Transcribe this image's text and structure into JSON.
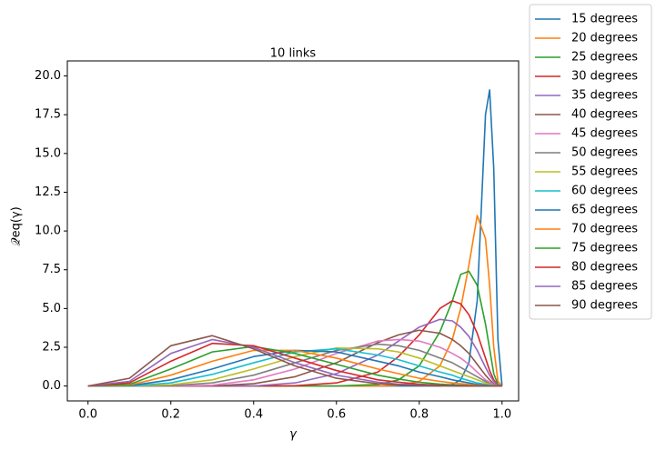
{
  "chart_data": {
    "type": "line",
    "title": "10 links",
    "x_label": "γ",
    "y_label": "𝒬eq(γ)",
    "x": [
      0,
      0.1,
      0.2,
      0.3,
      0.4,
      0.5,
      0.6,
      0.7,
      0.75,
      0.8,
      0.85,
      0.88,
      0.9,
      0.92,
      0.94,
      0.96,
      0.97,
      0.98,
      0.99,
      1.0
    ],
    "xlim": [
      -0.05,
      1.04
    ],
    "xticks": [
      {
        "value": 0,
        "label": "0.0"
      },
      0.2,
      0.4,
      0.6,
      0.8,
      {
        "value": 1,
        "label": "1.0"
      }
    ],
    "ylim": [
      -0.96,
      20.97
    ],
    "yticks": [
      {
        "value": 0,
        "label": "0.0"
      },
      2.5,
      {
        "value": 5,
        "label": "5.0"
      },
      7.5,
      {
        "value": 10,
        "label": "10.0"
      },
      12.5,
      {
        "value": 15,
        "label": "15.0"
      },
      17.5,
      {
        "value": 20,
        "label": "20.0"
      }
    ],
    "legend": "outside-right",
    "series": [
      {
        "name": "15 degrees",
        "color": "#1f77b4",
        "values": [
          0,
          0,
          0,
          0,
          0,
          0,
          0,
          0,
          0,
          0,
          0,
          0.1,
          0.4,
          1.5,
          5.5,
          17.5,
          19.1,
          14,
          3,
          0
        ]
      },
      {
        "name": "20 degrees",
        "color": "#ff7f0e",
        "values": [
          0,
          0,
          0,
          0,
          0,
          0,
          0,
          0,
          0.05,
          0.3,
          1.3,
          3,
          5,
          7.8,
          11,
          9.5,
          6.5,
          2.5,
          0.3,
          0
        ]
      },
      {
        "name": "25 degrees",
        "color": "#2ca02c",
        "values": [
          0,
          0,
          0,
          0,
          0,
          0,
          0,
          0.1,
          0.4,
          1.3,
          3.5,
          5.5,
          7.2,
          7.4,
          6.5,
          4,
          2.4,
          0.8,
          0.1,
          0
        ]
      },
      {
        "name": "30 degrees",
        "color": "#d62728",
        "values": [
          0,
          0,
          0,
          0,
          0,
          0.02,
          0.2,
          0.9,
          1.9,
          3.3,
          5,
          5.5,
          5.3,
          4.6,
          3.4,
          1.8,
          1,
          0.4,
          0.05,
          0
        ]
      },
      {
        "name": "35 degrees",
        "color": "#9467bd",
        "values": [
          0,
          0,
          0,
          0,
          0,
          0.2,
          0.8,
          2,
          2.9,
          3.8,
          4.3,
          4.2,
          3.8,
          3.2,
          2.3,
          1.2,
          0.7,
          0.3,
          0.05,
          0
        ]
      },
      {
        "name": "40 degrees",
        "color": "#8c564b",
        "values": [
          0,
          0,
          0,
          0,
          0.15,
          0.6,
          1.5,
          2.8,
          3.3,
          3.6,
          3.4,
          3,
          2.6,
          2.1,
          1.4,
          0.7,
          0.4,
          0.15,
          0.02,
          0
        ]
      },
      {
        "name": "45 degrees",
        "color": "#e377c2",
        "values": [
          0,
          0,
          0,
          0.05,
          0.4,
          1.1,
          2.1,
          2.9,
          3,
          2.9,
          2.5,
          2.1,
          1.8,
          1.4,
          0.9,
          0.4,
          0.25,
          0.1,
          0.01,
          0
        ]
      },
      {
        "name": "50 degrees",
        "color": "#7f7f7f",
        "values": [
          0,
          0,
          0.02,
          0.2,
          0.7,
          1.5,
          2.3,
          2.7,
          2.6,
          2.3,
          1.8,
          1.5,
          1.2,
          0.9,
          0.6,
          0.3,
          0.15,
          0.05,
          0,
          0
        ]
      },
      {
        "name": "55 degrees",
        "color": "#bcbd22",
        "values": [
          0,
          0,
          0.08,
          0.4,
          1.1,
          1.9,
          2.45,
          2.4,
          2.2,
          1.8,
          1.3,
          1,
          0.8,
          0.6,
          0.4,
          0.2,
          0.1,
          0.03,
          0,
          0
        ]
      },
      {
        "name": "60 degrees",
        "color": "#17becf",
        "values": [
          0,
          0,
          0.2,
          0.75,
          1.5,
          2.2,
          2.4,
          2,
          1.7,
          1.3,
          0.9,
          0.7,
          0.5,
          0.35,
          0.2,
          0.1,
          0.05,
          0.02,
          0,
          0
        ]
      },
      {
        "name": "65 degrees",
        "color": "#1f77b4",
        "values": [
          0,
          0.02,
          0.4,
          1.1,
          1.9,
          2.3,
          2.2,
          1.6,
          1.3,
          0.9,
          0.6,
          0.4,
          0.3,
          0.2,
          0.1,
          0.05,
          0.02,
          0,
          0,
          0
        ]
      },
      {
        "name": "70 degrees",
        "color": "#ff7f0e",
        "values": [
          0,
          0.05,
          0.7,
          1.6,
          2.3,
          2.3,
          1.8,
          1.1,
          0.8,
          0.5,
          0.3,
          0.2,
          0.15,
          0.1,
          0.05,
          0.02,
          0,
          0,
          0,
          0
        ]
      },
      {
        "name": "75 degrees",
        "color": "#2ca02c",
        "values": [
          0,
          0.1,
          1.1,
          2.2,
          2.55,
          2.1,
          1.4,
          0.7,
          0.45,
          0.25,
          0.12,
          0.08,
          0.05,
          0.03,
          0.01,
          0,
          0,
          0,
          0,
          0
        ]
      },
      {
        "name": "80 degrees",
        "color": "#d62728",
        "values": [
          0,
          0.2,
          1.6,
          2.75,
          2.6,
          1.8,
          1,
          0.4,
          0.25,
          0.12,
          0.05,
          0.03,
          0.02,
          0.01,
          0,
          0,
          0,
          0,
          0,
          0
        ]
      },
      {
        "name": "85 degrees",
        "color": "#9467bd",
        "values": [
          0,
          0.3,
          2.1,
          3,
          2.5,
          1.5,
          0.7,
          0.25,
          0.12,
          0.06,
          0.02,
          0.01,
          0,
          0,
          0,
          0,
          0,
          0,
          0,
          0
        ]
      },
      {
        "name": "90 degrees",
        "color": "#8c564b",
        "values": [
          0,
          0.5,
          2.6,
          3.25,
          2.4,
          1.3,
          0.5,
          0.15,
          0.07,
          0.03,
          0.01,
          0,
          0,
          0,
          0,
          0,
          0,
          0,
          0,
          0
        ]
      }
    ]
  }
}
